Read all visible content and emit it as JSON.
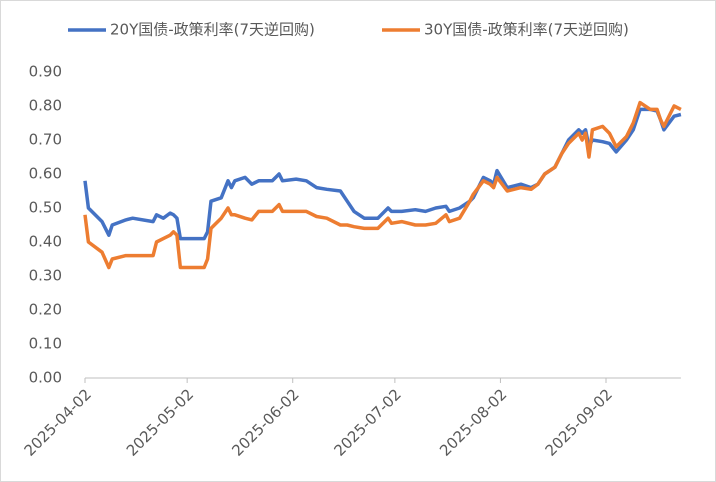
{
  "chart_data": {
    "type": "line",
    "x": [
      "2025-04-02",
      "2025-04-03",
      "2025-04-07",
      "2025-04-09",
      "2025-04-10",
      "2025-04-14",
      "2025-04-16",
      "2025-04-22",
      "2025-04-23",
      "2025-04-25",
      "2025-04-27",
      "2025-04-28",
      "2025-04-29",
      "2025-04-30",
      "2025-05-07",
      "2025-05-08",
      "2025-05-09",
      "2025-05-12",
      "2025-05-14",
      "2025-05-15",
      "2025-05-16",
      "2025-05-19",
      "2025-05-21",
      "2025-05-23",
      "2025-05-27",
      "2025-05-29",
      "2025-05-30",
      "2025-06-03",
      "2025-06-06",
      "2025-06-09",
      "2025-06-12",
      "2025-06-16",
      "2025-06-18",
      "2025-06-20",
      "2025-06-23",
      "2025-06-27",
      "2025-06-30",
      "2025-07-01",
      "2025-07-04",
      "2025-07-08",
      "2025-07-11",
      "2025-07-14",
      "2025-07-17",
      "2025-07-18",
      "2025-07-21",
      "2025-07-24",
      "2025-07-25",
      "2025-07-28",
      "2025-07-30",
      "2025-07-31",
      "2025-08-01",
      "2025-08-04",
      "2025-08-06",
      "2025-08-08",
      "2025-08-11",
      "2025-08-13",
      "2025-08-15",
      "2025-08-18",
      "2025-08-20",
      "2025-08-22",
      "2025-08-25",
      "2025-08-26",
      "2025-08-27",
      "2025-08-28",
      "2025-08-29",
      "2025-09-01",
      "2025-09-03",
      "2025-09-05",
      "2025-09-08",
      "2025-09-10",
      "2025-09-12",
      "2025-09-15",
      "2025-09-17",
      "2025-09-18",
      "2025-09-19",
      "2025-09-22",
      "2025-09-24"
    ],
    "series": [
      {
        "name": "20Y国债-政策利率(7天逆回购)",
        "color": "#4472c4",
        "values": [
          0.58,
          0.5,
          0.46,
          0.42,
          0.45,
          0.465,
          0.47,
          0.46,
          0.48,
          0.47,
          0.485,
          0.48,
          0.47,
          0.41,
          0.41,
          0.43,
          0.52,
          0.53,
          0.58,
          0.56,
          0.58,
          0.59,
          0.57,
          0.58,
          0.58,
          0.6,
          0.58,
          0.585,
          0.58,
          0.56,
          0.555,
          0.55,
          0.52,
          0.49,
          0.47,
          0.47,
          0.5,
          0.49,
          0.49,
          0.495,
          0.49,
          0.5,
          0.505,
          0.49,
          0.5,
          0.52,
          0.53,
          0.59,
          0.58,
          0.57,
          0.61,
          0.56,
          0.565,
          0.57,
          0.56,
          0.57,
          0.6,
          0.62,
          0.66,
          0.7,
          0.73,
          0.72,
          0.73,
          0.68,
          0.7,
          0.695,
          0.69,
          0.665,
          0.7,
          0.73,
          0.79,
          0.79,
          0.785,
          0.76,
          0.73,
          0.77,
          0.775
        ]
      },
      {
        "name": "30Y国债-政策利率(7天逆回购)",
        "color": "#ed7d31",
        "values": [
          0.48,
          0.4,
          0.37,
          0.325,
          0.35,
          0.36,
          0.36,
          0.36,
          0.4,
          0.41,
          0.42,
          0.43,
          0.42,
          0.325,
          0.325,
          0.35,
          0.44,
          0.47,
          0.5,
          0.48,
          0.48,
          0.47,
          0.465,
          0.49,
          0.49,
          0.51,
          0.49,
          0.49,
          0.49,
          0.475,
          0.47,
          0.45,
          0.45,
          0.445,
          0.44,
          0.44,
          0.47,
          0.455,
          0.46,
          0.45,
          0.45,
          0.455,
          0.48,
          0.46,
          0.47,
          0.52,
          0.54,
          0.58,
          0.57,
          0.56,
          0.59,
          0.55,
          0.555,
          0.56,
          0.555,
          0.57,
          0.6,
          0.62,
          0.66,
          0.69,
          0.72,
          0.7,
          0.72,
          0.65,
          0.73,
          0.74,
          0.72,
          0.68,
          0.71,
          0.75,
          0.81,
          0.79,
          0.79,
          0.76,
          0.74,
          0.8,
          0.79
        ]
      }
    ],
    "xlim": [
      "2025-04-02",
      "2025-09-24"
    ],
    "xticks": [
      "2025-04-02",
      "2025-05-02",
      "2025-06-02",
      "2025-07-02",
      "2025-08-02",
      "2025-09-02"
    ],
    "ylim": [
      0,
      0.9
    ],
    "yticks": [
      {
        "value": 0,
        "label": "0.00"
      },
      {
        "value": 0.1,
        "label": "0.10"
      },
      {
        "value": 0.2,
        "label": "0.20"
      },
      {
        "value": 0.3,
        "label": "0.30"
      },
      {
        "value": 0.4,
        "label": "0.40"
      },
      {
        "value": 0.5,
        "label": "0.50"
      },
      {
        "value": 0.6,
        "label": "0.60"
      },
      {
        "value": 0.7,
        "label": "0.70"
      },
      {
        "value": 0.8,
        "label": "0.80"
      },
      {
        "value": 0.9,
        "label": "0.90"
      }
    ],
    "grid": false
  }
}
